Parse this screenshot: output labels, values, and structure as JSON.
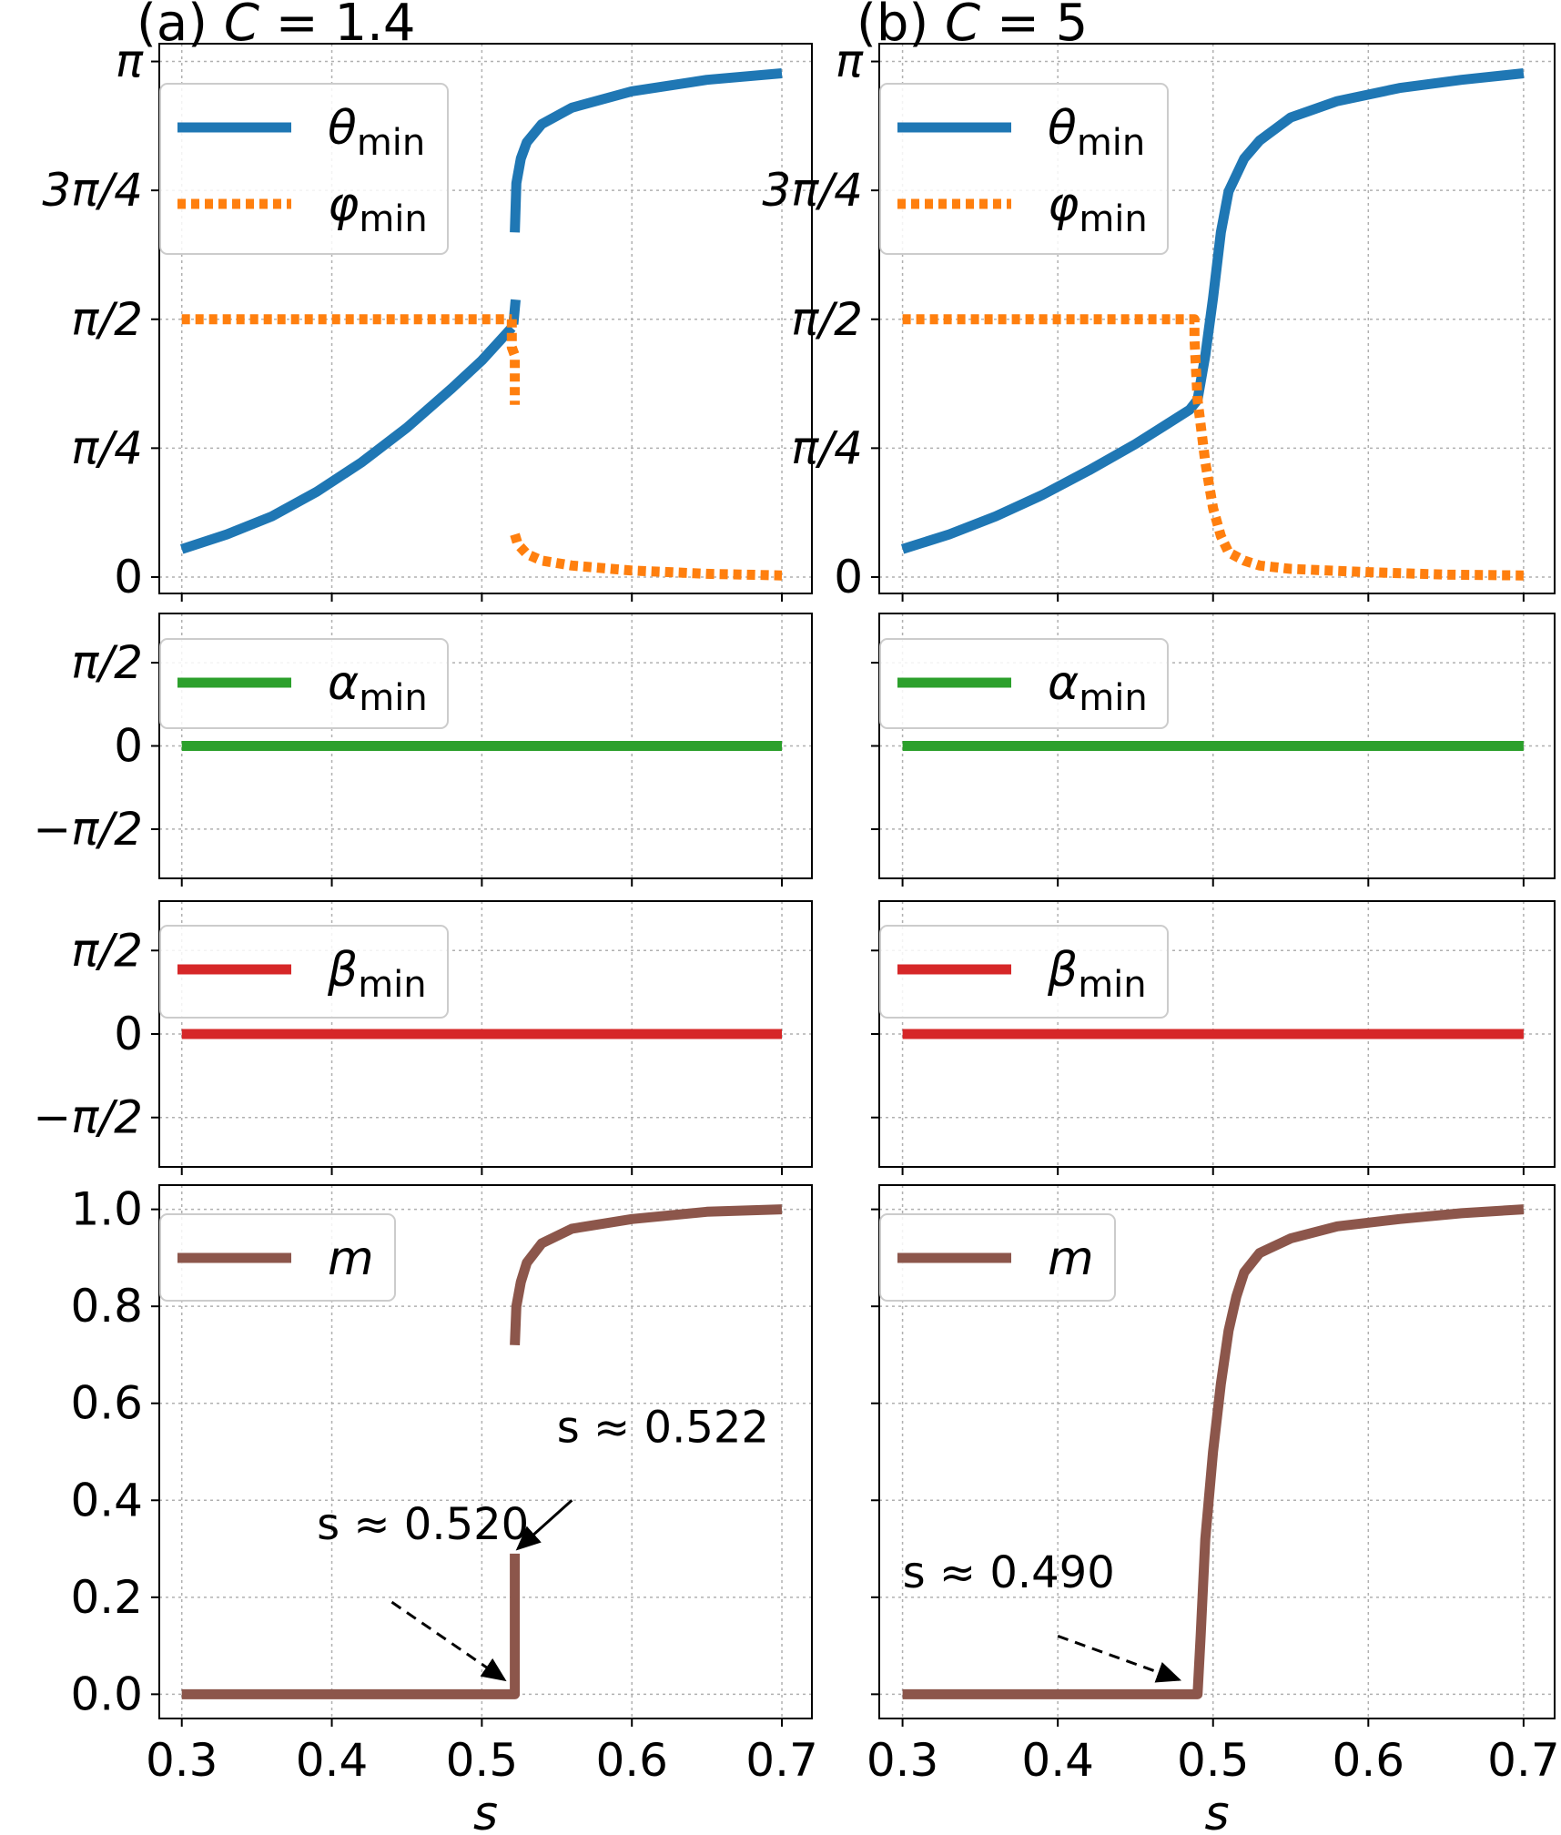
{
  "chart_data": [
    {
      "panel": "a",
      "title_prefix": "(a) ",
      "title_var": "C",
      "title_value": " = 1.4",
      "subplots": [
        {
          "type": "line",
          "ylim": [
            -0.1,
            3.25
          ],
          "yticks": [
            0,
            0.7854,
            1.5708,
            2.3562,
            3.1416
          ],
          "yticklabels": [
            "0",
            "π/4",
            "π/2",
            "3π/4",
            "π"
          ],
          "series": [
            {
              "sym": "θ",
              "sub": "min",
              "color": "#1f77b4",
              "style": "solid",
              "segments": [
                {
                  "x": [
                    0.3,
                    0.33,
                    0.36,
                    0.39,
                    0.42,
                    0.45,
                    0.48,
                    0.5,
                    0.51,
                    0.52
                  ],
                  "y": [
                    0.17,
                    0.26,
                    0.37,
                    0.52,
                    0.7,
                    0.91,
                    1.15,
                    1.32,
                    1.42,
                    1.52
                  ]
                },
                {
                  "x": [
                    0.521,
                    0.5225
                  ],
                  "y": [
                    1.54,
                    1.69
                  ]
                },
                {
                  "x": [
                    0.522,
                    0.523,
                    0.526,
                    0.53,
                    0.54,
                    0.56,
                    0.6,
                    0.65,
                    0.7
                  ],
                  "y": [
                    2.1,
                    2.4,
                    2.55,
                    2.65,
                    2.76,
                    2.86,
                    2.96,
                    3.03,
                    3.07
                  ]
                }
              ]
            },
            {
              "sym": "φ",
              "sub": "min",
              "color": "#ff7f0e",
              "style": "dotted",
              "segments": [
                {
                  "x": [
                    0.3,
                    0.52
                  ],
                  "y": [
                    1.5708,
                    1.5708
                  ]
                },
                {
                  "x": [
                    0.52,
                    0.52,
                    0.522,
                    0.522
                  ],
                  "y": [
                    1.5708,
                    1.4,
                    1.35,
                    1.05
                  ]
                },
                {
                  "x": [
                    0.522,
                    0.524,
                    0.53,
                    0.54,
                    0.56,
                    0.6,
                    0.65,
                    0.7
                  ],
                  "y": [
                    0.26,
                    0.2,
                    0.14,
                    0.1,
                    0.07,
                    0.04,
                    0.02,
                    0.01
                  ]
                }
              ]
            }
          ]
        },
        {
          "type": "line",
          "ylim": [
            -2.5,
            2.5
          ],
          "yticks": [
            -1.5708,
            0,
            1.5708
          ],
          "yticklabels": [
            "−π/2",
            "0",
            "π/2"
          ],
          "series": [
            {
              "sym": "α",
              "sub": "min",
              "color": "#2ca02c",
              "style": "solid",
              "segments": [
                {
                  "x": [
                    0.3,
                    0.7
                  ],
                  "y": [
                    0,
                    0
                  ]
                }
              ]
            }
          ]
        },
        {
          "type": "line",
          "ylim": [
            -2.5,
            2.5
          ],
          "yticks": [
            -1.5708,
            0,
            1.5708
          ],
          "yticklabels": [
            "−π/2",
            "0",
            "π/2"
          ],
          "series": [
            {
              "sym": "β",
              "sub": "min",
              "color": "#d62728",
              "style": "solid",
              "segments": [
                {
                  "x": [
                    0.3,
                    0.7
                  ],
                  "y": [
                    0,
                    0
                  ]
                }
              ]
            }
          ]
        },
        {
          "type": "line",
          "ylim": [
            -0.05,
            1.05
          ],
          "yticks": [
            0,
            0.2,
            0.4,
            0.6,
            0.8,
            1.0
          ],
          "yticklabels": [
            "0.0",
            "0.2",
            "0.4",
            "0.6",
            "0.8",
            "1.0"
          ],
          "xlabel": "s",
          "series": [
            {
              "sym": "m",
              "sub": "",
              "color": "#8c564b",
              "style": "solid",
              "segments": [
                {
                  "x": [
                    0.3,
                    0.522,
                    0.522
                  ],
                  "y": [
                    0,
                    0,
                    0.29
                  ]
                },
                {
                  "x": [
                    0.522,
                    0.523,
                    0.526,
                    0.53,
                    0.54,
                    0.56,
                    0.6,
                    0.65,
                    0.7
                  ],
                  "y": [
                    0.72,
                    0.8,
                    0.85,
                    0.89,
                    0.93,
                    0.96,
                    0.98,
                    0.995,
                    1.0
                  ]
                }
              ]
            }
          ],
          "annotations": [
            {
              "text": "s ≈ 0.520",
              "text_x": 0.39,
              "text_y": 0.32,
              "arrow_from": [
                0.44,
                0.19
              ],
              "arrow_to": [
                0.515,
                0.03
              ],
              "style": "dashed"
            },
            {
              "text": "s ≈ 0.522",
              "text_x": 0.55,
              "text_y": 0.52,
              "arrow_from": [
                0.56,
                0.4
              ],
              "arrow_to": [
                0.524,
                0.3
              ],
              "style": "solid"
            }
          ]
        }
      ],
      "xlim": [
        0.285,
        0.72
      ],
      "xticks": [
        0.3,
        0.4,
        0.5,
        0.6,
        0.7
      ],
      "xticklabels": [
        "0.3",
        "0.4",
        "0.5",
        "0.6",
        "0.7"
      ]
    },
    {
      "panel": "b",
      "title_prefix": "(b) ",
      "title_var": "C",
      "title_value": " = 5",
      "subplots": [
        {
          "type": "line",
          "ylim": [
            -0.1,
            3.25
          ],
          "yticks": [
            0,
            0.7854,
            1.5708,
            2.3562,
            3.1416
          ],
          "yticklabels": [
            "0",
            "π/4",
            "π/2",
            "3π/4",
            "π"
          ],
          "series": [
            {
              "sym": "θ",
              "sub": "min",
              "color": "#1f77b4",
              "style": "solid",
              "segments": [
                {
                  "x": [
                    0.3,
                    0.33,
                    0.36,
                    0.39,
                    0.42,
                    0.45,
                    0.47,
                    0.485,
                    0.49,
                    0.495,
                    0.5,
                    0.505,
                    0.51,
                    0.52,
                    0.53,
                    0.55,
                    0.58,
                    0.62,
                    0.66,
                    0.7
                  ],
                  "y": [
                    0.17,
                    0.26,
                    0.37,
                    0.5,
                    0.65,
                    0.81,
                    0.93,
                    1.02,
                    1.08,
                    1.35,
                    1.7,
                    2.1,
                    2.35,
                    2.55,
                    2.66,
                    2.8,
                    2.9,
                    2.98,
                    3.03,
                    3.07
                  ]
                }
              ]
            },
            {
              "sym": "φ",
              "sub": "min",
              "color": "#ff7f0e",
              "style": "dotted",
              "segments": [
                {
                  "x": [
                    0.3,
                    0.488,
                    0.488,
                    0.49,
                    0.495,
                    0.5,
                    0.505,
                    0.51,
                    0.52,
                    0.53,
                    0.55,
                    0.6,
                    0.65,
                    0.7
                  ],
                  "y": [
                    1.5708,
                    1.5708,
                    1.45,
                    1.08,
                    0.7,
                    0.42,
                    0.25,
                    0.15,
                    0.1,
                    0.07,
                    0.05,
                    0.03,
                    0.015,
                    0.01
                  ]
                }
              ]
            }
          ]
        },
        {
          "type": "line",
          "ylim": [
            -2.5,
            2.5
          ],
          "yticks": [
            -1.5708,
            0,
            1.5708
          ],
          "yticklabels": [
            "",
            "",
            ""
          ],
          "series": [
            {
              "sym": "α",
              "sub": "min",
              "color": "#2ca02c",
              "style": "solid",
              "segments": [
                {
                  "x": [
                    0.3,
                    0.7
                  ],
                  "y": [
                    0,
                    0
                  ]
                }
              ]
            }
          ]
        },
        {
          "type": "line",
          "ylim": [
            -2.5,
            2.5
          ],
          "yticks": [
            -1.5708,
            0,
            1.5708
          ],
          "yticklabels": [
            "",
            "",
            ""
          ],
          "series": [
            {
              "sym": "β",
              "sub": "min",
              "color": "#d62728",
              "style": "solid",
              "segments": [
                {
                  "x": [
                    0.3,
                    0.7
                  ],
                  "y": [
                    0,
                    0
                  ]
                }
              ]
            }
          ]
        },
        {
          "type": "line",
          "ylim": [
            -0.05,
            1.05
          ],
          "yticks": [
            0,
            0.2,
            0.4,
            0.6,
            0.8,
            1.0
          ],
          "yticklabels": [
            "",
            "",
            "",
            "",
            "",
            ""
          ],
          "xlabel": "s",
          "series": [
            {
              "sym": "m",
              "sub": "",
              "color": "#8c564b",
              "style": "solid",
              "segments": [
                {
                  "x": [
                    0.3,
                    0.49,
                    0.492,
                    0.495,
                    0.5,
                    0.505,
                    0.51,
                    0.515,
                    0.52,
                    0.53,
                    0.55,
                    0.58,
                    0.62,
                    0.66,
                    0.7
                  ],
                  "y": [
                    0,
                    0,
                    0.12,
                    0.32,
                    0.5,
                    0.64,
                    0.75,
                    0.82,
                    0.87,
                    0.91,
                    0.94,
                    0.965,
                    0.98,
                    0.992,
                    1.0
                  ]
                }
              ]
            }
          ],
          "annotations": [
            {
              "text": "s ≈ 0.490",
              "text_x": 0.3,
              "text_y": 0.22,
              "arrow_from": [
                0.4,
                0.12
              ],
              "arrow_to": [
                0.478,
                0.03
              ],
              "style": "dashed"
            }
          ]
        }
      ],
      "xlim": [
        0.285,
        0.72
      ],
      "xticks": [
        0.3,
        0.4,
        0.5,
        0.6,
        0.7
      ],
      "xticklabels": [
        "0.3",
        "0.4",
        "0.5",
        "0.6",
        "0.7"
      ]
    }
  ]
}
